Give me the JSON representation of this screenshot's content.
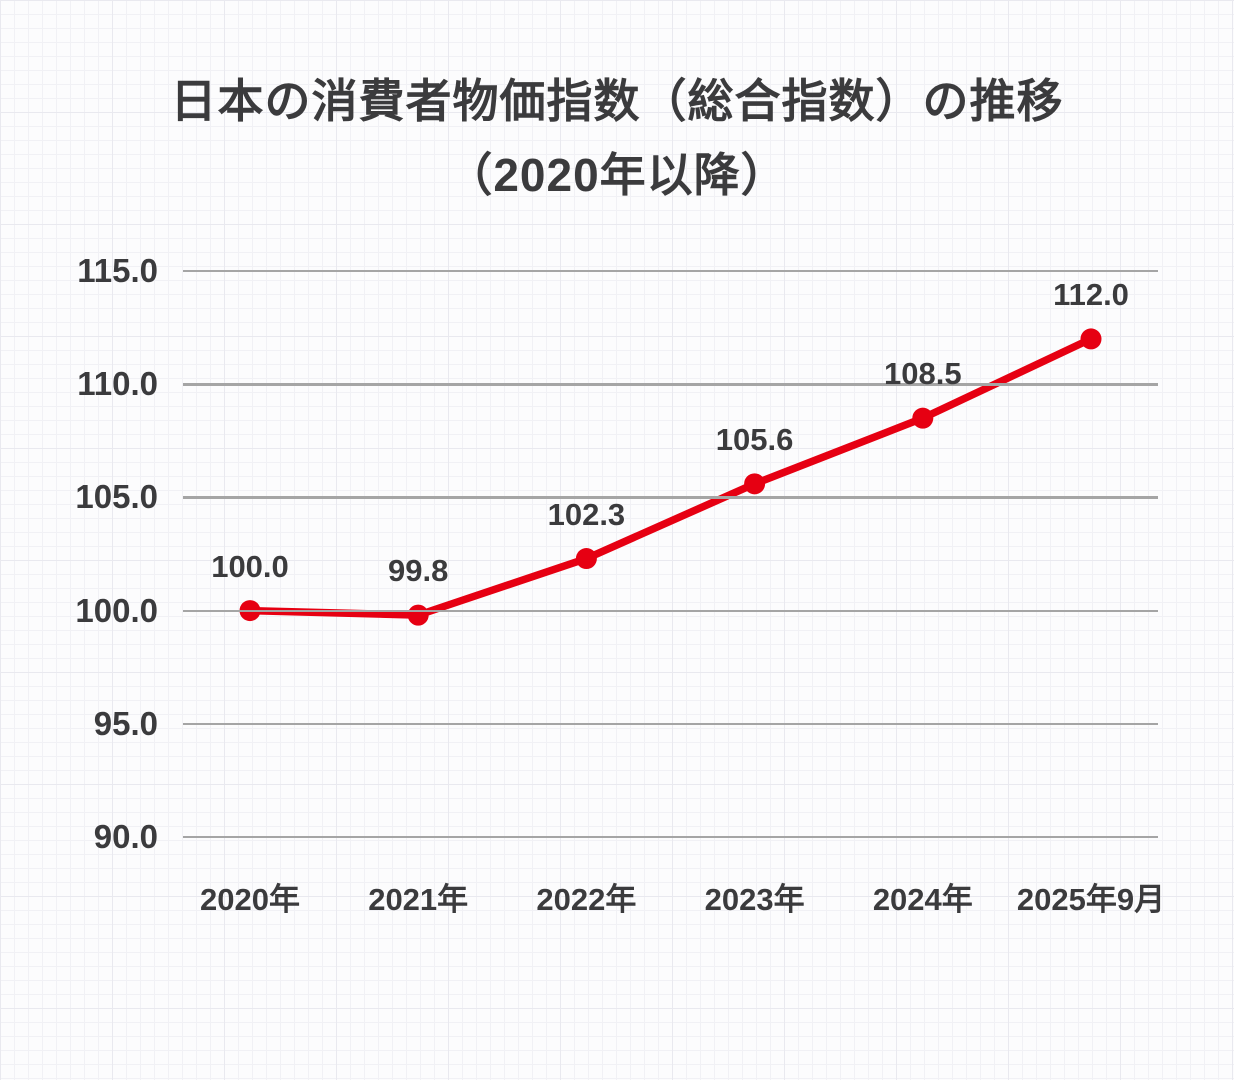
{
  "title": {
    "line1": "日本の消費者物価指数（総合指数）の推移",
    "line2": "（2020年以降）"
  },
  "colors": {
    "line": "#e60012",
    "marker": "#e60012",
    "text": "#3b3b3d",
    "chart_gridline": "#a5a5a5",
    "paper_background": "#fcfcfd",
    "paper_grid_minor": "#f1f1f5",
    "paper_grid_major": "#e9e9ef"
  },
  "chart_data": {
    "type": "line",
    "title": "日本の消費者物価指数（総合指数）の推移（2020年以降）",
    "categories": [
      "2020年",
      "2021年",
      "2022年",
      "2023年",
      "2024年",
      "2025年9月"
    ],
    "values": [
      100.0,
      99.8,
      102.3,
      105.6,
      108.5,
      112.0
    ],
    "point_labels": [
      "100.0",
      "99.8",
      "102.3",
      "105.6",
      "108.5",
      "112.0"
    ],
    "yticks": [
      115.0,
      110.0,
      105.0,
      100.0,
      95.0,
      90.0
    ],
    "ytick_labels": [
      "115.0",
      "110.0",
      "105.0",
      "100.0",
      "95.0",
      "90.0"
    ],
    "ylim": [
      90.0,
      115.0
    ],
    "xlabel": "",
    "ylabel": "",
    "grid": "horizontal-only",
    "legend": "none",
    "data_labels_shown": true
  }
}
